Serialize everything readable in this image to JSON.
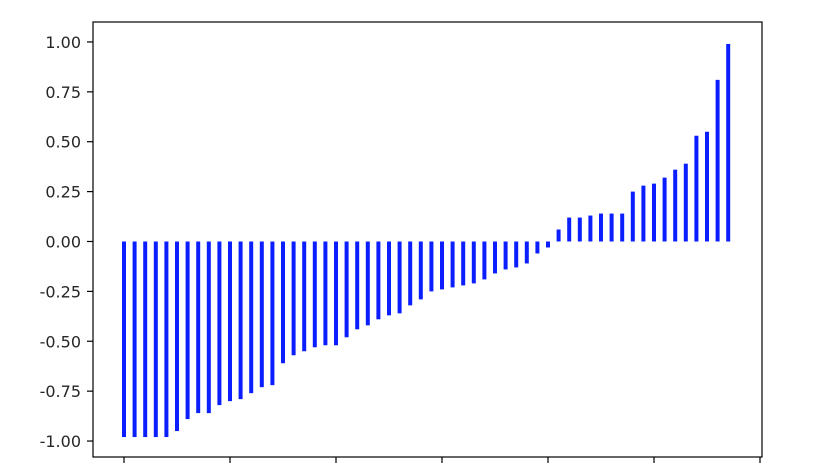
{
  "chart_data": {
    "type": "bar",
    "title": "",
    "xlabel": "",
    "ylabel": "",
    "ylim": [
      -1.08,
      1.1
    ],
    "yticks": [
      "1.00",
      "0.75",
      "0.50",
      "0.25",
      "0.00",
      "-0.25",
      "-0.50",
      "-0.75",
      "-1.00"
    ],
    "ytick_values": [
      1.0,
      0.75,
      0.5,
      0.25,
      0.0,
      -0.25,
      -0.5,
      -0.75,
      -1.0
    ],
    "xtick_count": 7,
    "grid": false,
    "bar_color": "#0a1eff",
    "values": [
      -0.98,
      -0.98,
      -0.98,
      -0.98,
      -0.98,
      -0.95,
      -0.89,
      -0.86,
      -0.86,
      -0.82,
      -0.8,
      -0.79,
      -0.76,
      -0.73,
      -0.72,
      -0.61,
      -0.57,
      -0.55,
      -0.53,
      -0.52,
      -0.52,
      -0.48,
      -0.44,
      -0.42,
      -0.39,
      -0.37,
      -0.36,
      -0.32,
      -0.29,
      -0.25,
      -0.24,
      -0.23,
      -0.22,
      -0.21,
      -0.19,
      -0.16,
      -0.14,
      -0.13,
      -0.11,
      -0.06,
      -0.03,
      0.06,
      0.12,
      0.12,
      0.13,
      0.14,
      0.14,
      0.14,
      0.25,
      0.28,
      0.29,
      0.32,
      0.36,
      0.39,
      0.53,
      0.55,
      0.81,
      0.99
    ]
  }
}
